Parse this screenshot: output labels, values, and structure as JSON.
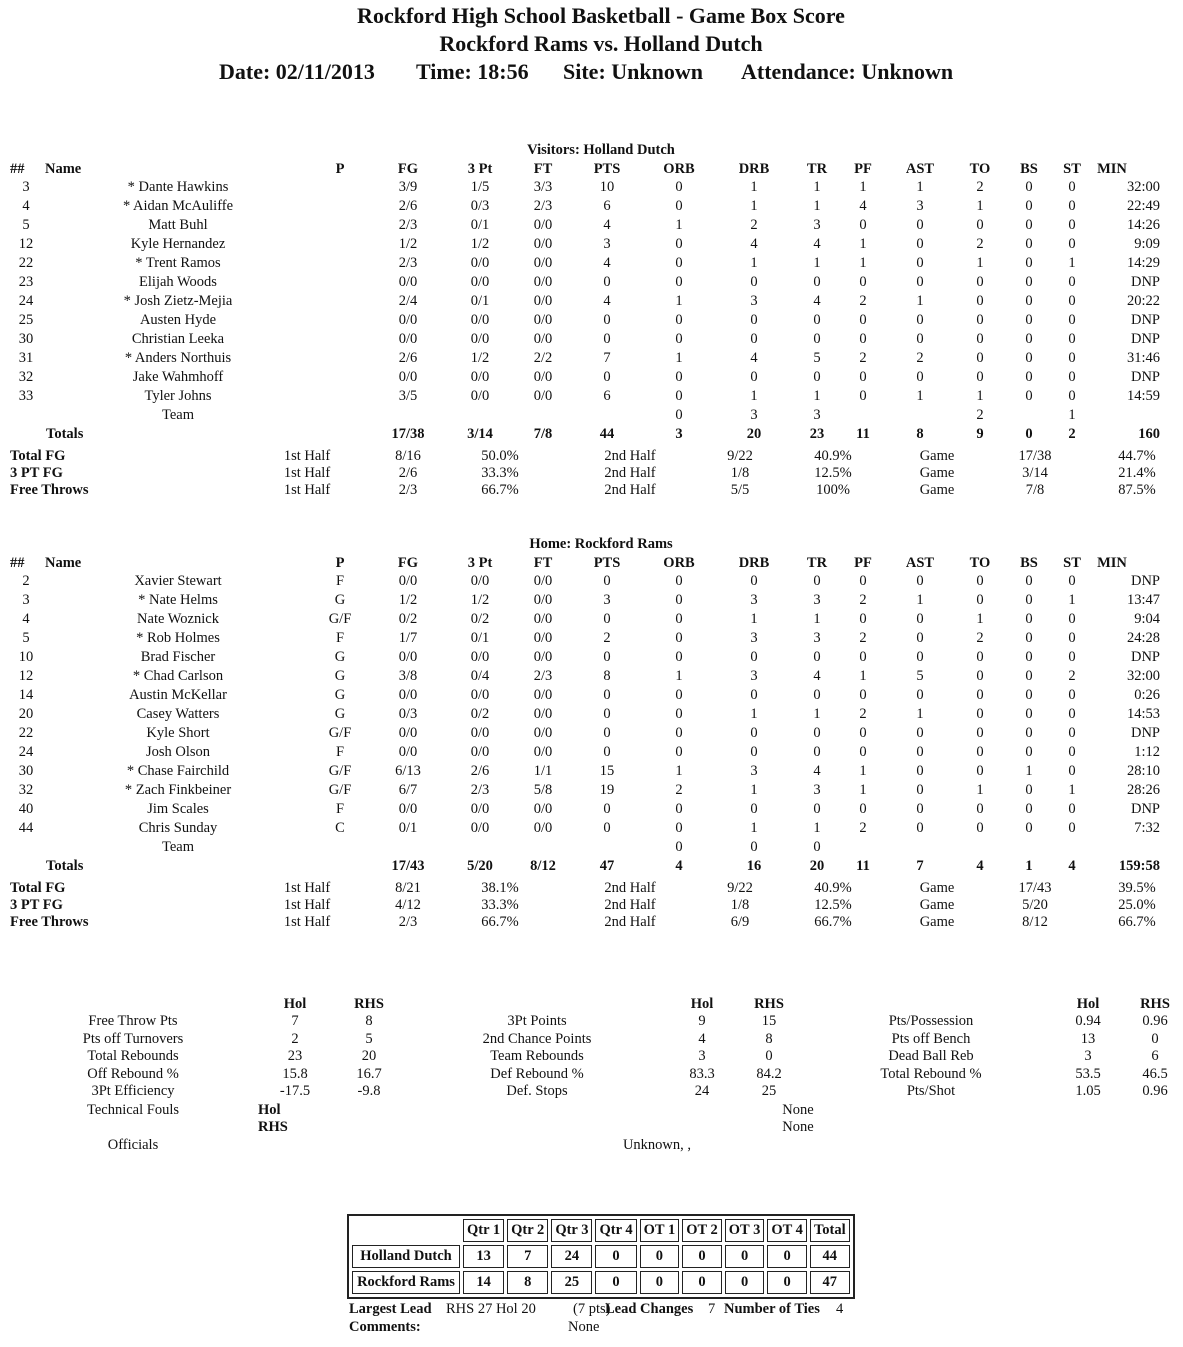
{
  "header": {
    "title": "Rockford High School Basketball - Game Box Score",
    "matchup": "Rockford Rams vs. Holland Dutch",
    "date": "Date: 02/11/2013",
    "time": "Time: 18:56",
    "site": "Site: Unknown",
    "attendance": "Attendance: Unknown"
  },
  "visitors": {
    "heading": "Visitors: Holland Dutch",
    "columns": [
      "##",
      "Name",
      "P",
      "FG",
      "3 Pt",
      "FT",
      "PTS",
      "ORB",
      "DRB",
      "TR",
      "PF",
      "AST",
      "TO",
      "BS",
      "ST",
      "MIN"
    ],
    "players": [
      [
        "3",
        "* Dante Hawkins",
        null,
        "3/9",
        "1/5",
        "3/3",
        "10",
        "0",
        "1",
        "1",
        "1",
        "1",
        "2",
        "0",
        "0",
        "32:00"
      ],
      [
        "4",
        "* Aidan McAuliffe",
        null,
        "2/6",
        "0/3",
        "2/3",
        "6",
        "0",
        "1",
        "1",
        "4",
        "3",
        "1",
        "0",
        "0",
        "22:49"
      ],
      [
        "5",
        "Matt Buhl",
        null,
        "2/3",
        "0/1",
        "0/0",
        "4",
        "1",
        "2",
        "3",
        "0",
        "0",
        "0",
        "0",
        "0",
        "14:26"
      ],
      [
        "12",
        "Kyle Hernandez",
        null,
        "1/2",
        "1/2",
        "0/0",
        "3",
        "0",
        "4",
        "4",
        "1",
        "0",
        "2",
        "0",
        "0",
        "9:09"
      ],
      [
        "22",
        "* Trent Ramos",
        null,
        "2/3",
        "0/0",
        "0/0",
        "4",
        "0",
        "1",
        "1",
        "1",
        "0",
        "1",
        "0",
        "1",
        "14:29"
      ],
      [
        "23",
        "Elijah Woods",
        null,
        "0/0",
        "0/0",
        "0/0",
        "0",
        "0",
        "0",
        "0",
        "0",
        "0",
        "0",
        "0",
        "0",
        "DNP"
      ],
      [
        "24",
        "* Josh Zietz-Mejia",
        null,
        "2/4",
        "0/1",
        "0/0",
        "4",
        "1",
        "3",
        "4",
        "2",
        "1",
        "0",
        "0",
        "0",
        "20:22"
      ],
      [
        "25",
        "Austen Hyde",
        null,
        "0/0",
        "0/0",
        "0/0",
        "0",
        "0",
        "0",
        "0",
        "0",
        "0",
        "0",
        "0",
        "0",
        "DNP"
      ],
      [
        "30",
        "Christian Leeka",
        null,
        "0/0",
        "0/0",
        "0/0",
        "0",
        "0",
        "0",
        "0",
        "0",
        "0",
        "0",
        "0",
        "0",
        "DNP"
      ],
      [
        "31",
        "* Anders Northuis",
        null,
        "2/6",
        "1/2",
        "2/2",
        "7",
        "1",
        "4",
        "5",
        "2",
        "2",
        "0",
        "0",
        "0",
        "31:46"
      ],
      [
        "32",
        "Jake Wahmhoff",
        null,
        "0/0",
        "0/0",
        "0/0",
        "0",
        "0",
        "0",
        "0",
        "0",
        "0",
        "0",
        "0",
        "0",
        "DNP"
      ],
      [
        "33",
        "Tyler Johns",
        null,
        "3/5",
        "0/0",
        "0/0",
        "6",
        "0",
        "1",
        "1",
        "0",
        "1",
        "1",
        "0",
        "0",
        "14:59"
      ]
    ],
    "team_row": [
      null,
      "Team",
      null,
      null,
      null,
      null,
      null,
      "0",
      "3",
      "3",
      null,
      null,
      "2",
      null,
      "1",
      null
    ],
    "totals": [
      null,
      "Totals",
      null,
      "17/38",
      "3/14",
      "7/8",
      "44",
      "3",
      "20",
      "23",
      "11",
      "8",
      "9",
      "0",
      "2",
      "160"
    ],
    "shooting": [
      [
        "Total FG",
        "1st Half",
        "8/16",
        "50.0%",
        "2nd Half",
        "9/22",
        "40.9%",
        "Game",
        "17/38",
        "44.7%"
      ],
      [
        "3 PT FG",
        "1st Half",
        "2/6",
        "33.3%",
        "2nd Half",
        "1/8",
        "12.5%",
        "Game",
        "3/14",
        "21.4%"
      ],
      [
        "Free Throws",
        "1st Half",
        "2/3",
        "66.7%",
        "2nd Half",
        "5/5",
        "100%",
        "Game",
        "7/8",
        "87.5%"
      ]
    ]
  },
  "home": {
    "heading": "Home: Rockford Rams",
    "columns": [
      "##",
      "Name",
      "P",
      "FG",
      "3 Pt",
      "FT",
      "PTS",
      "ORB",
      "DRB",
      "TR",
      "PF",
      "AST",
      "TO",
      "BS",
      "ST",
      "MIN"
    ],
    "players": [
      [
        "2",
        "Xavier Stewart",
        "F",
        "0/0",
        "0/0",
        "0/0",
        "0",
        "0",
        "0",
        "0",
        "0",
        "0",
        "0",
        "0",
        "0",
        "DNP"
      ],
      [
        "3",
        "* Nate Helms",
        "G",
        "1/2",
        "1/2",
        "0/0",
        "3",
        "0",
        "3",
        "3",
        "2",
        "1",
        "0",
        "0",
        "1",
        "13:47"
      ],
      [
        "4",
        "Nate Woznick",
        "G/F",
        "0/2",
        "0/2",
        "0/0",
        "0",
        "0",
        "1",
        "1",
        "0",
        "0",
        "1",
        "0",
        "0",
        "9:04"
      ],
      [
        "5",
        "* Rob Holmes",
        "F",
        "1/7",
        "0/1",
        "0/0",
        "2",
        "0",
        "3",
        "3",
        "2",
        "0",
        "2",
        "0",
        "0",
        "24:28"
      ],
      [
        "10",
        "Brad Fischer",
        "G",
        "0/0",
        "0/0",
        "0/0",
        "0",
        "0",
        "0",
        "0",
        "0",
        "0",
        "0",
        "0",
        "0",
        "DNP"
      ],
      [
        "12",
        "* Chad Carlson",
        "G",
        "3/8",
        "0/4",
        "2/3",
        "8",
        "1",
        "3",
        "4",
        "1",
        "5",
        "0",
        "0",
        "2",
        "32:00"
      ],
      [
        "14",
        "Austin McKellar",
        "G",
        "0/0",
        "0/0",
        "0/0",
        "0",
        "0",
        "0",
        "0",
        "0",
        "0",
        "0",
        "0",
        "0",
        "0:26"
      ],
      [
        "20",
        "Casey Watters",
        "G",
        "0/3",
        "0/2",
        "0/0",
        "0",
        "0",
        "1",
        "1",
        "2",
        "1",
        "0",
        "0",
        "0",
        "14:53"
      ],
      [
        "22",
        "Kyle Short",
        "G/F",
        "0/0",
        "0/0",
        "0/0",
        "0",
        "0",
        "0",
        "0",
        "0",
        "0",
        "0",
        "0",
        "0",
        "DNP"
      ],
      [
        "24",
        "Josh Olson",
        "F",
        "0/0",
        "0/0",
        "0/0",
        "0",
        "0",
        "0",
        "0",
        "0",
        "0",
        "0",
        "0",
        "0",
        "1:12"
      ],
      [
        "30",
        "* Chase Fairchild",
        "G/F",
        "6/13",
        "2/6",
        "1/1",
        "15",
        "1",
        "3",
        "4",
        "1",
        "0",
        "0",
        "1",
        "0",
        "28:10"
      ],
      [
        "32",
        "* Zach Finkbeiner",
        "G/F",
        "6/7",
        "2/3",
        "5/8",
        "19",
        "2",
        "1",
        "3",
        "1",
        "0",
        "1",
        "0",
        "1",
        "28:26"
      ],
      [
        "40",
        "Jim Scales",
        "F",
        "0/0",
        "0/0",
        "0/0",
        "0",
        "0",
        "0",
        "0",
        "0",
        "0",
        "0",
        "0",
        "0",
        "DNP"
      ],
      [
        "44",
        "Chris Sunday",
        "C",
        "0/1",
        "0/0",
        "0/0",
        "0",
        "0",
        "1",
        "1",
        "2",
        "0",
        "0",
        "0",
        "0",
        "7:32"
      ]
    ],
    "team_row": [
      null,
      "Team",
      null,
      null,
      null,
      null,
      null,
      "0",
      "0",
      "0",
      null,
      null,
      null,
      null,
      null,
      null
    ],
    "totals": [
      null,
      "Totals",
      null,
      "17/43",
      "5/20",
      "8/12",
      "47",
      "4",
      "16",
      "20",
      "11",
      "7",
      "4",
      "1",
      "4",
      "159:58"
    ],
    "shooting": [
      [
        "Total FG",
        "1st Half",
        "8/21",
        "38.1%",
        "2nd Half",
        "9/22",
        "40.9%",
        "Game",
        "17/43",
        "39.5%"
      ],
      [
        "3 PT FG",
        "1st Half",
        "4/12",
        "33.3%",
        "2nd Half",
        "1/8",
        "12.5%",
        "Game",
        "5/20",
        "25.0%"
      ],
      [
        "Free Throws",
        "1st Half",
        "2/3",
        "66.7%",
        "2nd Half",
        "6/9",
        "66.7%",
        "Game",
        "8/12",
        "66.7%"
      ]
    ]
  },
  "team_stats": {
    "groups": [
      {
        "headers": [
          "Hol",
          "RHS"
        ],
        "rows": [
          [
            "Free Throw Pts",
            "7",
            "8"
          ],
          [
            "Pts off Turnovers",
            "2",
            "5"
          ],
          [
            "Total Rebounds",
            "23",
            "20"
          ],
          [
            "Off Rebound %",
            "15.8",
            "16.7"
          ],
          [
            "3Pt Efficiency",
            "-17.5",
            "-9.8"
          ]
        ]
      },
      {
        "headers": [
          "Hol",
          "RHS"
        ],
        "rows": [
          [
            "3Pt Points",
            "9",
            "15"
          ],
          [
            "2nd Chance Points",
            "4",
            "8"
          ],
          [
            "Team Rebounds",
            "3",
            "0"
          ],
          [
            "Def Rebound %",
            "83.3",
            "84.2"
          ],
          [
            "Def. Stops",
            "24",
            "25"
          ]
        ]
      },
      {
        "headers": [
          "Hol",
          "RHS"
        ],
        "rows": [
          [
            "Pts/Possession",
            "0.94",
            "0.96"
          ],
          [
            "Pts off Bench",
            "13",
            "0"
          ],
          [
            "Dead Ball Reb",
            "3",
            "6"
          ],
          [
            "Total Rebound %",
            "53.5",
            "46.5"
          ],
          [
            "Pts/Shot",
            "1.05",
            "0.96"
          ]
        ]
      }
    ],
    "technical_fouls": {
      "label": "Technical Fouls",
      "rows": [
        [
          "Hol",
          "None"
        ],
        [
          "RHS",
          "None"
        ]
      ]
    },
    "officials": {
      "label": "Officials",
      "value": "Unknown, ,"
    }
  },
  "line_score": {
    "columns": [
      "Qtr 1",
      "Qtr 2",
      "Qtr 3",
      "Qtr 4",
      "OT 1",
      "OT 2",
      "OT 3",
      "OT 4",
      "Total"
    ],
    "rows": [
      [
        "Holland Dutch",
        "13",
        "7",
        "24",
        "0",
        "0",
        "0",
        "0",
        "0",
        "44"
      ],
      [
        "Rockford Rams",
        "14",
        "8",
        "25",
        "0",
        "0",
        "0",
        "0",
        "0",
        "47"
      ]
    ]
  },
  "footer": {
    "largest_lead_label": "Largest Lead",
    "largest_lead": "RHS 27 Hol 20",
    "largest_lead_pts": "(7 pts)",
    "lead_changes_label": "Lead Changes",
    "lead_changes": "7",
    "ties_label": "Number of Ties",
    "ties": "4",
    "comments_label": "Comments:",
    "comments": "None"
  }
}
